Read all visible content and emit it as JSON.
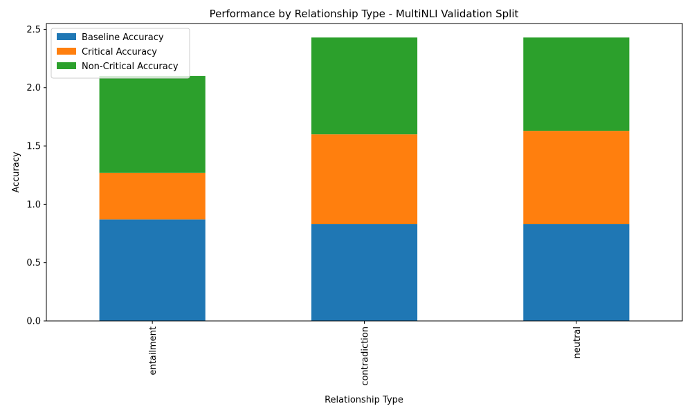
{
  "chart_data": {
    "type": "bar",
    "stacked": true,
    "title": "Performance by Relationship Type - MultiNLI Validation Split",
    "xlabel": "Relationship Type",
    "ylabel": "Accuracy",
    "categories": [
      "entailment",
      "contradiction",
      "neutral"
    ],
    "series": [
      {
        "name": "Baseline Accuracy",
        "color": "#1f77b4",
        "values": [
          0.87,
          0.83,
          0.83
        ]
      },
      {
        "name": "Critical Accuracy",
        "color": "#ff7f0e",
        "values": [
          0.4,
          0.77,
          0.8
        ]
      },
      {
        "name": "Non-Critical Accuracy",
        "color": "#2ca02c",
        "values": [
          0.83,
          0.83,
          0.8
        ]
      }
    ],
    "ylim": [
      0,
      2.55
    ],
    "yticks": [
      "0.0",
      "0.5",
      "1.0",
      "1.5",
      "2.0",
      "2.5"
    ],
    "grid": false,
    "legend_position": "top-left"
  }
}
